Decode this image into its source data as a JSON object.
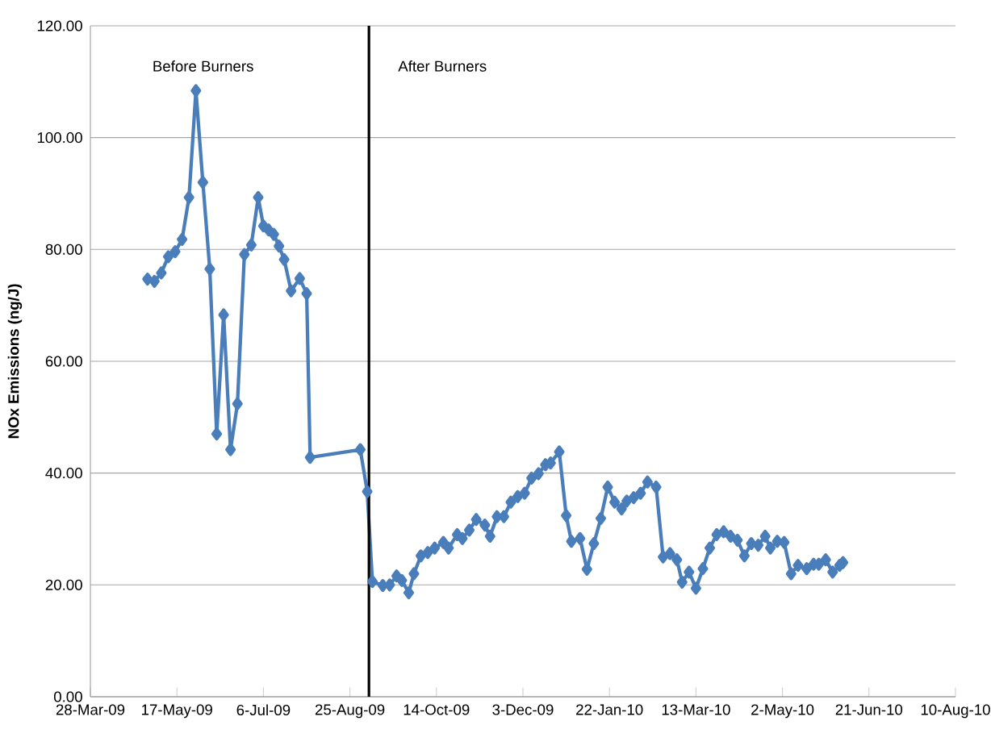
{
  "chart_data": {
    "type": "line",
    "ylabel": "NOx Emissions (ng/J)",
    "annotations": [
      "Before Burners",
      "After Burners"
    ],
    "xlim": [
      "2009-03-28",
      "2010-08-10"
    ],
    "xticks": [
      {
        "value": "2009-03-28",
        "label": "28-Mar-09"
      },
      {
        "value": "2009-05-17",
        "label": "17-May-09"
      },
      {
        "value": "2009-07-06",
        "label": "6-Jul-09"
      },
      {
        "value": "2009-08-25",
        "label": "25-Aug-09"
      },
      {
        "value": "2009-10-14",
        "label": "14-Oct-09"
      },
      {
        "value": "2009-12-03",
        "label": "3-Dec-09"
      },
      {
        "value": "2010-01-22",
        "label": "22-Jan-10"
      },
      {
        "value": "2010-03-13",
        "label": "13-Mar-10"
      },
      {
        "value": "2010-05-02",
        "label": "2-May-10"
      },
      {
        "value": "2010-06-21",
        "label": "21-Jun-10"
      },
      {
        "value": "2010-08-10",
        "label": "10-Aug-10"
      }
    ],
    "ylim": [
      0,
      120
    ],
    "yticks": [
      {
        "value": 0,
        "label": "0.00"
      },
      {
        "value": 20,
        "label": "20.00"
      },
      {
        "value": 40,
        "label": "40.00"
      },
      {
        "value": 60,
        "label": "60.00"
      },
      {
        "value": 80,
        "label": "80.00"
      },
      {
        "value": 100,
        "label": "100.00"
      },
      {
        "value": 120,
        "label": "120.00"
      }
    ],
    "grid": "y",
    "marker": "diamond",
    "line_style": "solid",
    "ref_lines": [
      {
        "axis": "x",
        "value": "2009-09-05",
        "color": "#000000"
      }
    ],
    "x": [
      "2009-04-30",
      "2009-05-04",
      "2009-05-08",
      "2009-05-12",
      "2009-05-16",
      "2009-05-20",
      "2009-05-24",
      "2009-05-28",
      "2009-06-01",
      "2009-06-05",
      "2009-06-09",
      "2009-06-13",
      "2009-06-17",
      "2009-06-21",
      "2009-06-25",
      "2009-06-29",
      "2009-07-03",
      "2009-07-06",
      "2009-07-09",
      "2009-07-12",
      "2009-07-15",
      "2009-07-18",
      "2009-07-22",
      "2009-07-27",
      "2009-07-31",
      "2009-08-02",
      "2009-08-31",
      "2009-09-04",
      "2009-09-07",
      "2009-09-13",
      "2009-09-17",
      "2009-09-21",
      "2009-09-24",
      "2009-09-28",
      "2009-10-01",
      "2009-10-05",
      "2009-10-09",
      "2009-10-13",
      "2009-10-18",
      "2009-10-21",
      "2009-10-26",
      "2009-10-29",
      "2009-11-02",
      "2009-11-06",
      "2009-11-11",
      "2009-11-14",
      "2009-11-18",
      "2009-11-22",
      "2009-11-26",
      "2009-11-30",
      "2009-12-04",
      "2009-12-08",
      "2009-12-12",
      "2009-12-16",
      "2009-12-19",
      "2009-12-24",
      "2009-12-28",
      "2009-12-31",
      "2010-01-05",
      "2010-01-09",
      "2010-01-13",
      "2010-01-17",
      "2010-01-21",
      "2010-01-25",
      "2010-01-29",
      "2010-02-01",
      "2010-02-05",
      "2010-02-09",
      "2010-02-13",
      "2010-02-18",
      "2010-02-22",
      "2010-02-26",
      "2010-03-02",
      "2010-03-05",
      "2010-03-09",
      "2010-03-13",
      "2010-03-17",
      "2010-03-21",
      "2010-03-25",
      "2010-03-29",
      "2010-04-02",
      "2010-04-06",
      "2010-04-10",
      "2010-04-14",
      "2010-04-18",
      "2010-04-22",
      "2010-04-25",
      "2010-04-29",
      "2010-05-03",
      "2010-05-07",
      "2010-05-11",
      "2010-05-16",
      "2010-05-20",
      "2010-05-23",
      "2010-05-27",
      "2010-05-31",
      "2010-06-04",
      "2010-06-06"
    ],
    "series": [
      {
        "color": "#4a7ebb",
        "values": [
          74.7,
          74.3,
          75.8,
          78.7,
          79.6,
          81.8,
          89.3,
          108.4,
          92.0,
          76.5,
          47.0,
          68.3,
          44.2,
          52.4,
          79.1,
          80.8,
          89.3,
          84.2,
          83.5,
          82.7,
          80.6,
          78.2,
          72.6,
          74.8,
          72.1,
          42.8,
          44.2,
          36.7,
          20.6,
          19.9,
          20.0,
          21.6,
          20.8,
          18.6,
          22.0,
          25.2,
          25.8,
          26.6,
          27.6,
          26.6,
          29.0,
          28.3,
          29.8,
          31.7,
          30.7,
          28.7,
          32.2,
          32.2,
          34.8,
          35.8,
          36.4,
          39.1,
          39.9,
          41.5,
          41.8,
          43.8,
          32.4,
          27.8,
          28.3,
          22.8,
          27.4,
          31.9,
          37.5,
          34.8,
          33.6,
          35.0,
          35.6,
          36.4,
          38.4,
          37.5,
          25.0,
          25.6,
          24.5,
          20.5,
          22.3,
          19.4,
          22.9,
          26.6,
          29.0,
          29.5,
          28.7,
          28.0,
          25.2,
          27.4,
          27.1,
          28.7,
          26.6,
          27.8,
          27.6,
          22.0,
          23.5,
          22.9,
          23.7,
          23.7,
          24.5,
          22.3,
          23.5,
          24.0
        ]
      }
    ]
  }
}
